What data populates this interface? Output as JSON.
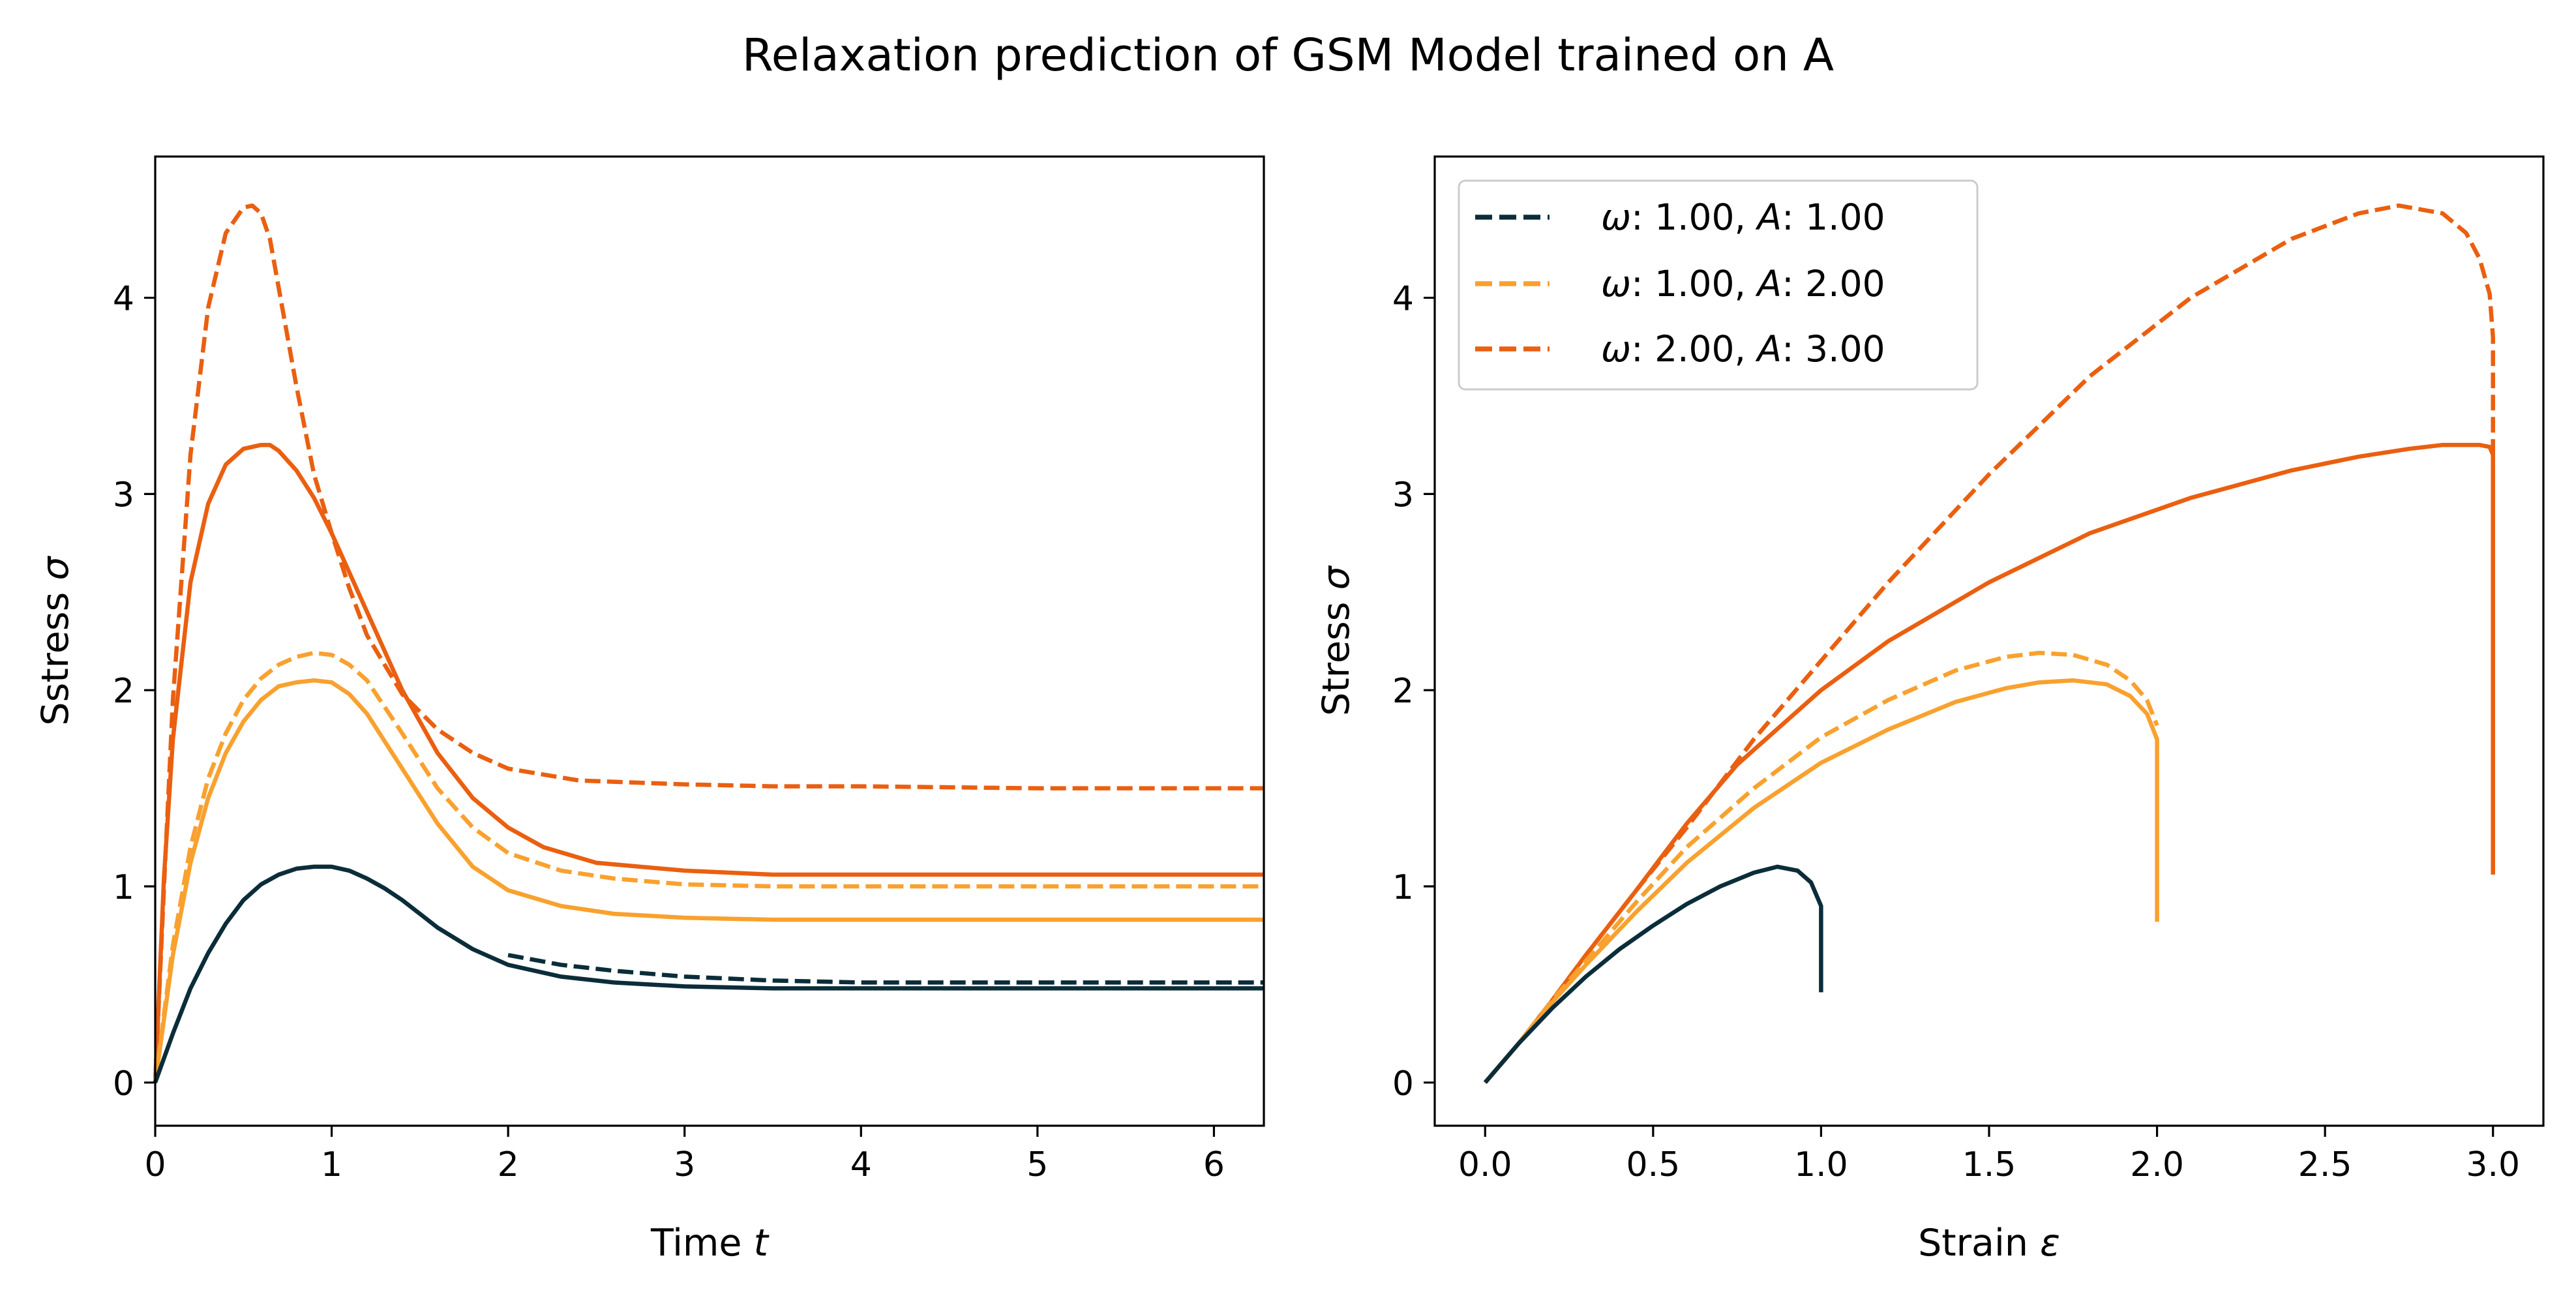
{
  "figure": {
    "title": "Relaxation prediction of GSM Model trained on A"
  },
  "colors": {
    "dark": "#0b2d3a",
    "light_orange": "#f9a12e",
    "orange": "#ea5f10"
  },
  "chart_data": [
    {
      "type": "line",
      "xlabel": "Time ",
      "xlabel_var": "t",
      "ylabel": "Sstress ",
      "ylabel_var": "σ",
      "xlim": [
        0,
        6.283
      ],
      "ylim": [
        -0.22,
        4.72
      ],
      "xticks": [
        0,
        1,
        2,
        3,
        4,
        5,
        6
      ],
      "yticks": [
        0,
        1,
        2,
        3,
        4
      ],
      "xtick_labels": [
        "0",
        "1",
        "2",
        "3",
        "4",
        "5",
        "6"
      ],
      "ytick_labels": [
        "0",
        "1",
        "2",
        "3",
        "4"
      ],
      "series": [
        {
          "color": "#ea5f10",
          "dash": true,
          "x": [
            0,
            0.05,
            0.1,
            0.2,
            0.3,
            0.4,
            0.5,
            0.55,
            0.6,
            0.65,
            0.7,
            0.8,
            0.9,
            1.0,
            1.1,
            1.2,
            1.4,
            1.6,
            1.8,
            2.0,
            2.4,
            3.0,
            3.5,
            4.0,
            5.0,
            6.283
          ],
          "y": [
            0,
            1.0,
            1.95,
            3.2,
            3.95,
            4.33,
            4.46,
            4.47,
            4.43,
            4.3,
            4.05,
            3.55,
            3.1,
            2.8,
            2.52,
            2.28,
            1.98,
            1.8,
            1.68,
            1.6,
            1.54,
            1.52,
            1.51,
            1.51,
            1.5,
            1.5
          ]
        },
        {
          "color": "#ea5f10",
          "dash": false,
          "x": [
            0,
            0.05,
            0.1,
            0.2,
            0.3,
            0.4,
            0.5,
            0.6,
            0.65,
            0.7,
            0.8,
            0.9,
            1.0,
            1.2,
            1.4,
            1.6,
            1.8,
            2.0,
            2.2,
            2.5,
            3.0,
            3.5,
            4.0,
            5.0,
            6.283
          ],
          "y": [
            0,
            1.05,
            1.75,
            2.55,
            2.95,
            3.15,
            3.23,
            3.25,
            3.25,
            3.22,
            3.12,
            2.98,
            2.8,
            2.4,
            2.0,
            1.68,
            1.45,
            1.3,
            1.2,
            1.12,
            1.08,
            1.06,
            1.06,
            1.06,
            1.06
          ]
        },
        {
          "color": "#f9a12e",
          "dash": true,
          "x": [
            0,
            0.1,
            0.2,
            0.3,
            0.4,
            0.5,
            0.6,
            0.7,
            0.8,
            0.9,
            1.0,
            1.1,
            1.2,
            1.4,
            1.6,
            1.8,
            2.0,
            2.3,
            2.6,
            3.0,
            3.5,
            4.0,
            5.0,
            6.283
          ],
          "y": [
            0,
            0.7,
            1.2,
            1.55,
            1.78,
            1.95,
            2.06,
            2.13,
            2.17,
            2.19,
            2.18,
            2.13,
            2.05,
            1.78,
            1.5,
            1.3,
            1.17,
            1.08,
            1.04,
            1.01,
            1.0,
            1.0,
            1.0,
            1.0
          ]
        },
        {
          "color": "#f9a12e",
          "dash": false,
          "x": [
            0,
            0.1,
            0.2,
            0.3,
            0.4,
            0.5,
            0.6,
            0.7,
            0.8,
            0.9,
            1.0,
            1.1,
            1.2,
            1.4,
            1.6,
            1.8,
            2.0,
            2.3,
            2.6,
            3.0,
            3.5,
            4.0,
            5.0,
            6.283
          ],
          "y": [
            0,
            0.65,
            1.12,
            1.45,
            1.68,
            1.84,
            1.95,
            2.02,
            2.04,
            2.05,
            2.04,
            1.98,
            1.88,
            1.6,
            1.32,
            1.1,
            0.98,
            0.9,
            0.86,
            0.84,
            0.83,
            0.83,
            0.83,
            0.83
          ]
        },
        {
          "color": "#0b2d3a",
          "dash": true,
          "x": [
            2.0,
            2.3,
            2.6,
            3.0,
            3.5,
            4.0,
            5.0,
            6.283
          ],
          "y": [
            0.65,
            0.6,
            0.57,
            0.54,
            0.52,
            0.51,
            0.51,
            0.51
          ]
        },
        {
          "color": "#0b2d3a",
          "dash": false,
          "x": [
            0,
            0.1,
            0.2,
            0.3,
            0.4,
            0.5,
            0.6,
            0.7,
            0.8,
            0.9,
            1.0,
            1.1,
            1.2,
            1.3,
            1.4,
            1.5,
            1.6,
            1.8,
            2.0,
            2.3,
            2.6,
            3.0,
            3.5,
            4.0,
            5.0,
            6.283
          ],
          "y": [
            0,
            0.25,
            0.48,
            0.66,
            0.81,
            0.93,
            1.01,
            1.06,
            1.09,
            1.1,
            1.1,
            1.08,
            1.04,
            0.99,
            0.93,
            0.86,
            0.79,
            0.68,
            0.6,
            0.54,
            0.51,
            0.49,
            0.48,
            0.48,
            0.48,
            0.48
          ]
        }
      ]
    },
    {
      "type": "line",
      "xlabel": "Strain ",
      "xlabel_var": "ε",
      "ylabel": "Stress ",
      "ylabel_var": "σ",
      "xlim": [
        -0.15,
        3.15
      ],
      "ylim": [
        -0.22,
        4.72
      ],
      "xticks": [
        0.0,
        0.5,
        1.0,
        1.5,
        2.0,
        2.5,
        3.0
      ],
      "yticks": [
        0,
        1,
        2,
        3,
        4
      ],
      "xtick_labels": [
        "0.0",
        "0.5",
        "1.0",
        "1.5",
        "2.0",
        "2.5",
        "3.0"
      ],
      "ytick_labels": [
        "0",
        "1",
        "2",
        "3",
        "4"
      ],
      "legend": {
        "location": "top-left",
        "entries": [
          {
            "label": ": 1.00, ",
            "sym1": "ω",
            "sym2": "A",
            "val": ": 1.00",
            "color": "#0b2d3a"
          },
          {
            "label": ": 1.00, ",
            "sym1": "ω",
            "sym2": "A",
            "val": ": 2.00",
            "color": "#f9a12e"
          },
          {
            "label": ": 2.00, ",
            "sym1": "ω",
            "sym2": "A",
            "val": ": 3.00",
            "color": "#ea5f10"
          }
        ]
      },
      "series": [
        {
          "color": "#ea5f10",
          "dash": true,
          "x": [
            0,
            0.1,
            0.2,
            0.3,
            0.45,
            0.6,
            0.8,
            1.0,
            1.2,
            1.5,
            1.8,
            2.1,
            2.4,
            2.6,
            2.72,
            2.85,
            2.92,
            2.96,
            2.99,
            3.0,
            3.0
          ],
          "y": [
            0,
            0.2,
            0.42,
            0.65,
            0.98,
            1.3,
            1.75,
            2.15,
            2.55,
            3.1,
            3.6,
            4.0,
            4.3,
            4.43,
            4.47,
            4.43,
            4.33,
            4.2,
            4.02,
            3.8,
            3.2
          ]
        },
        {
          "color": "#ea5f10",
          "dash": false,
          "x": [
            0,
            0.1,
            0.2,
            0.3,
            0.45,
            0.6,
            0.75,
            1.0,
            1.2,
            1.5,
            1.8,
            2.1,
            2.4,
            2.6,
            2.75,
            2.85,
            2.92,
            2.96,
            2.99,
            3.0,
            3.0,
            3.0
          ],
          "y": [
            0,
            0.2,
            0.42,
            0.65,
            0.98,
            1.32,
            1.62,
            2.0,
            2.25,
            2.55,
            2.8,
            2.98,
            3.12,
            3.19,
            3.23,
            3.25,
            3.25,
            3.25,
            3.24,
            3.2,
            2.0,
            1.06
          ]
        },
        {
          "color": "#f9a12e",
          "dash": true,
          "x": [
            0,
            0.1,
            0.2,
            0.3,
            0.45,
            0.6,
            0.8,
            1.0,
            1.2,
            1.4,
            1.55,
            1.65,
            1.75,
            1.85,
            1.92,
            1.97,
            2.0
          ],
          "y": [
            0,
            0.2,
            0.42,
            0.62,
            0.92,
            1.2,
            1.5,
            1.76,
            1.95,
            2.1,
            2.17,
            2.19,
            2.18,
            2.13,
            2.05,
            1.95,
            1.82
          ]
        },
        {
          "color": "#f9a12e",
          "dash": false,
          "x": [
            0,
            0.1,
            0.2,
            0.3,
            0.45,
            0.6,
            0.8,
            1.0,
            1.2,
            1.4,
            1.55,
            1.65,
            1.75,
            1.85,
            1.92,
            1.97,
            2.0,
            2.0,
            2.0
          ],
          "y": [
            0,
            0.2,
            0.41,
            0.6,
            0.87,
            1.12,
            1.4,
            1.63,
            1.8,
            1.94,
            2.01,
            2.04,
            2.05,
            2.03,
            1.97,
            1.88,
            1.75,
            1.4,
            0.82
          ]
        },
        {
          "color": "#0b2d3a",
          "dash": false,
          "x": [
            0,
            0.1,
            0.2,
            0.3,
            0.4,
            0.5,
            0.6,
            0.7,
            0.8,
            0.87,
            0.93,
            0.97,
            1.0,
            1.0,
            1.0
          ],
          "y": [
            0,
            0.2,
            0.38,
            0.54,
            0.68,
            0.8,
            0.91,
            1.0,
            1.07,
            1.1,
            1.08,
            1.02,
            0.9,
            0.7,
            0.46
          ]
        }
      ]
    }
  ]
}
